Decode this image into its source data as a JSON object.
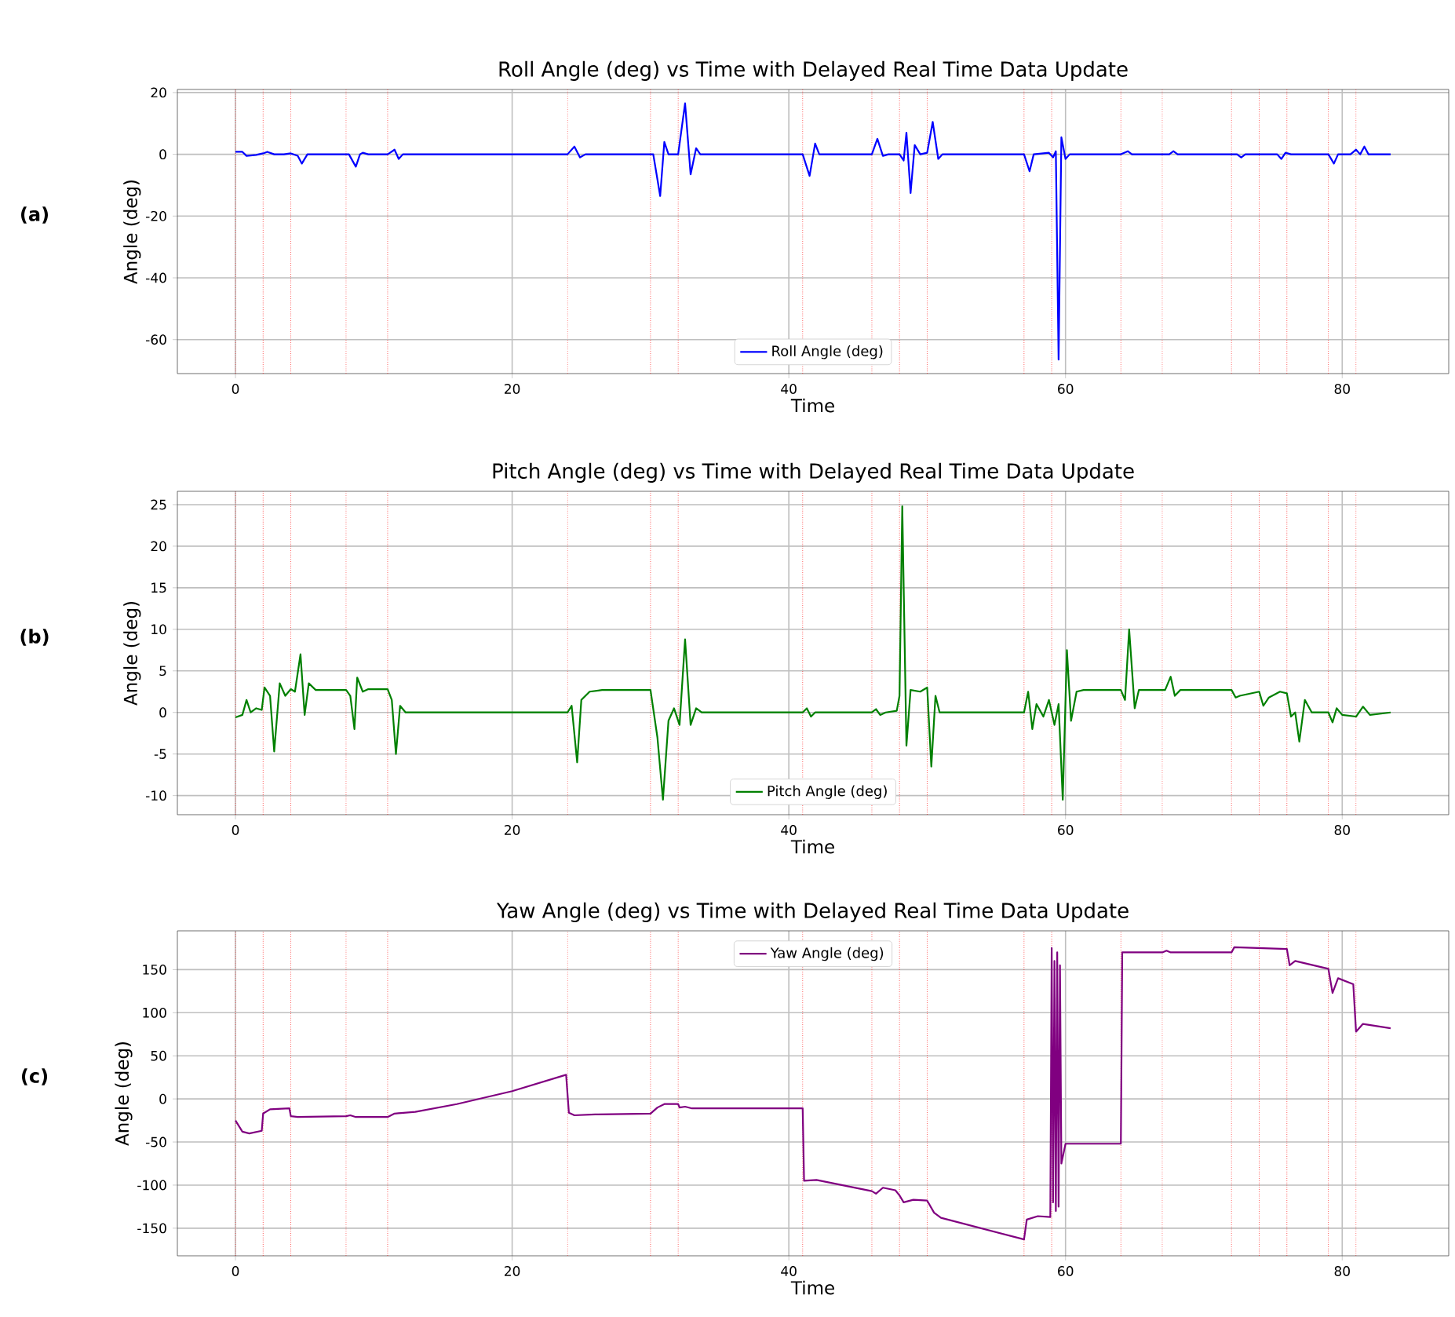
{
  "chart_data": [
    {
      "type": "line",
      "title": "Roll Angle (deg) vs Time with Delayed Real Time Data Update",
      "xlabel": "Time",
      "ylabel": "Angle (deg)",
      "annotations": [
        "(a)"
      ],
      "grid": true,
      "legend": "bottom",
      "xlim": [
        -4.2,
        87.7
      ],
      "ylim": [
        -71,
        21
      ],
      "xticks": [
        0,
        20,
        40,
        60,
        80
      ],
      "yticks": [
        -60,
        -40,
        -20,
        0,
        20
      ],
      "x": [
        0,
        0.5,
        0.8,
        1.5,
        2.0,
        2.3,
        2.8,
        3.5,
        4.0,
        4.5,
        4.8,
        5.2,
        6,
        8.2,
        8.7,
        9.0,
        9.2,
        9.6,
        11,
        11.5,
        11.8,
        12.1,
        24,
        24.5,
        24.9,
        25.3,
        30.2,
        30.7,
        31.0,
        31.3,
        32.0,
        32.5,
        32.9,
        33.3,
        33.6,
        41.0,
        41.5,
        41.9,
        42.2,
        46,
        46.4,
        46.8,
        47.2,
        48,
        48.3,
        48.5,
        48.8,
        49.1,
        49.5,
        50,
        50.4,
        50.8,
        51.1,
        57,
        57.4,
        57.7,
        58.8,
        59.1,
        59.3,
        59.5,
        59.7,
        60.0,
        60.3,
        64,
        64.5,
        64.8,
        67.5,
        67.8,
        68.1,
        72.4,
        72.7,
        73.0,
        75.3,
        75.6,
        75.9,
        76.3,
        79,
        79.4,
        79.7,
        80.6,
        81.0,
        81.3,
        81.6,
        81.9,
        83.5
      ],
      "series": [
        {
          "name": "Roll Angle (deg)",
          "color": "#0000ff",
          "values": [
            0.8,
            0.8,
            -0.5,
            -0.2,
            0.3,
            0.8,
            0,
            0,
            0.3,
            -0.5,
            -3,
            0,
            0,
            0,
            -4,
            0,
            0.5,
            0,
            0,
            1.5,
            -1.5,
            0,
            0,
            2.5,
            -1.0,
            0,
            0,
            -13.5,
            4,
            0,
            0,
            16.5,
            -6.5,
            2,
            0,
            0,
            -7,
            3.5,
            0,
            0,
            5,
            -0.5,
            0,
            0,
            -2,
            7,
            -12.5,
            3,
            0,
            0.5,
            10.5,
            -1.5,
            0,
            0,
            -5.5,
            0,
            0.5,
            -1,
            1,
            -66.5,
            5.5,
            -1.5,
            0,
            0,
            1,
            0,
            0,
            1,
            0,
            0,
            -1,
            0,
            0,
            -1.5,
            0.5,
            0,
            0,
            -3,
            0,
            0,
            1.5,
            0,
            2.5,
            0,
            0
          ]
        }
      ],
      "ref_lines": [
        {
          "axis": "x",
          "value": 0,
          "color": "#ff0000",
          "line_style": "dotted"
        },
        {
          "axis": "x",
          "value": 2,
          "color": "#ff0000",
          "line_style": "dotted"
        },
        {
          "axis": "x",
          "value": 4,
          "color": "#ff0000",
          "line_style": "dotted"
        },
        {
          "axis": "x",
          "value": 8,
          "color": "#ff0000",
          "line_style": "dotted"
        },
        {
          "axis": "x",
          "value": 11,
          "color": "#ff0000",
          "line_style": "dotted"
        },
        {
          "axis": "x",
          "value": 24,
          "color": "#ff0000",
          "line_style": "dotted"
        },
        {
          "axis": "x",
          "value": 30,
          "color": "#ff0000",
          "line_style": "dotted"
        },
        {
          "axis": "x",
          "value": 32,
          "color": "#ff0000",
          "line_style": "dotted"
        },
        {
          "axis": "x",
          "value": 41,
          "color": "#ff0000",
          "line_style": "dotted"
        },
        {
          "axis": "x",
          "value": 46,
          "color": "#ff0000",
          "line_style": "dotted"
        },
        {
          "axis": "x",
          "value": 48,
          "color": "#ff0000",
          "line_style": "dotted"
        },
        {
          "axis": "x",
          "value": 50,
          "color": "#ff0000",
          "line_style": "dotted"
        },
        {
          "axis": "x",
          "value": 57,
          "color": "#ff0000",
          "line_style": "dotted"
        },
        {
          "axis": "x",
          "value": 59,
          "color": "#ff0000",
          "line_style": "dotted"
        },
        {
          "axis": "x",
          "value": 64,
          "color": "#ff0000",
          "line_style": "dotted"
        },
        {
          "axis": "x",
          "value": 67,
          "color": "#ff0000",
          "line_style": "dotted"
        },
        {
          "axis": "x",
          "value": 72,
          "color": "#ff0000",
          "line_style": "dotted"
        },
        {
          "axis": "x",
          "value": 74,
          "color": "#ff0000",
          "line_style": "dotted"
        },
        {
          "axis": "x",
          "value": 76,
          "color": "#ff0000",
          "line_style": "dotted"
        },
        {
          "axis": "x",
          "value": 79,
          "color": "#ff0000",
          "line_style": "dotted"
        },
        {
          "axis": "x",
          "value": 81,
          "color": "#ff0000",
          "line_style": "dotted"
        }
      ]
    },
    {
      "type": "line",
      "title": "Pitch Angle (deg) vs Time with Delayed Real Time Data Update",
      "xlabel": "Time",
      "ylabel": "Angle (deg)",
      "annotations": [
        "(b)"
      ],
      "grid": true,
      "legend": "bottom",
      "xlim": [
        -4.2,
        87.7
      ],
      "ylim": [
        -12.3,
        26.6
      ],
      "xticks": [
        0,
        20,
        40,
        60,
        80
      ],
      "yticks": [
        -10,
        -5,
        0,
        5,
        10,
        15,
        20,
        25
      ],
      "x": [
        0,
        0.5,
        0.8,
        1.1,
        1.5,
        1.9,
        2.1,
        2.5,
        2.8,
        3.2,
        3.6,
        4.0,
        4.3,
        4.7,
        5.0,
        5.3,
        5.8,
        8.0,
        8.3,
        8.6,
        8.8,
        9.2,
        9.6,
        11.0,
        11.3,
        11.6,
        11.9,
        12.3,
        24,
        24.3,
        24.7,
        25.0,
        25.6,
        26.5,
        30.0,
        30.5,
        30.9,
        31.3,
        31.7,
        32.1,
        32.5,
        32.9,
        33.3,
        33.7,
        41,
        41.3,
        41.6,
        41.9,
        46,
        46.3,
        46.6,
        47,
        47.8,
        48.0,
        48.2,
        48.5,
        48.8,
        49.5,
        50.0,
        50.3,
        50.6,
        50.9,
        57,
        57.3,
        57.6,
        57.9,
        58.4,
        58.8,
        59.2,
        59.5,
        59.8,
        60.1,
        60.4,
        60.8,
        61.3,
        64,
        64.3,
        64.6,
        65.0,
        65.3,
        67.2,
        67.6,
        67.9,
        68.3,
        72.0,
        72.3,
        72.6,
        74,
        74.3,
        74.7,
        75.5,
        76,
        76.3,
        76.6,
        76.9,
        77.3,
        77.8,
        79,
        79.3,
        79.6,
        80,
        81,
        81.5,
        82,
        83.5
      ],
      "series": [
        {
          "name": "Pitch Angle (deg)",
          "color": "#008000",
          "values": [
            -0.6,
            -0.3,
            1.5,
            0,
            0.5,
            0.3,
            3,
            2,
            -4.7,
            3.5,
            2,
            2.8,
            2.5,
            7,
            -0.3,
            3.5,
            2.7,
            2.7,
            2,
            -2,
            4.2,
            2.5,
            2.8,
            2.8,
            1.5,
            -5,
            0.8,
            0,
            0,
            0.8,
            -6,
            1.5,
            2.5,
            2.7,
            2.7,
            -3,
            -10.5,
            -1,
            0.5,
            -1.5,
            8.8,
            -1.5,
            0.5,
            0,
            0,
            0.5,
            -0.5,
            0,
            0,
            0.4,
            -0.3,
            0,
            0.2,
            2,
            24.8,
            -4,
            2.7,
            2.5,
            3,
            -6.5,
            2,
            0,
            0,
            2.5,
            -2,
            1,
            -0.5,
            1.5,
            -1.5,
            1,
            -10.5,
            7.5,
            -1,
            2.5,
            2.7,
            2.7,
            1.5,
            10,
            0.5,
            2.7,
            2.7,
            4.3,
            2,
            2.7,
            2.7,
            1.8,
            2,
            2.5,
            0.8,
            1.8,
            2.5,
            2.3,
            -0.5,
            0,
            -3.5,
            1.5,
            0,
            0,
            -1.2,
            0.5,
            -0.3,
            -0.5,
            0.7,
            -0.3,
            0
          ]
        }
      ],
      "ref_lines": [
        {
          "axis": "x",
          "value": 0,
          "color": "#ff0000",
          "line_style": "dotted"
        },
        {
          "axis": "x",
          "value": 2,
          "color": "#ff0000",
          "line_style": "dotted"
        },
        {
          "axis": "x",
          "value": 4,
          "color": "#ff0000",
          "line_style": "dotted"
        },
        {
          "axis": "x",
          "value": 8,
          "color": "#ff0000",
          "line_style": "dotted"
        },
        {
          "axis": "x",
          "value": 11,
          "color": "#ff0000",
          "line_style": "dotted"
        },
        {
          "axis": "x",
          "value": 24,
          "color": "#ff0000",
          "line_style": "dotted"
        },
        {
          "axis": "x",
          "value": 30,
          "color": "#ff0000",
          "line_style": "dotted"
        },
        {
          "axis": "x",
          "value": 32,
          "color": "#ff0000",
          "line_style": "dotted"
        },
        {
          "axis": "x",
          "value": 41,
          "color": "#ff0000",
          "line_style": "dotted"
        },
        {
          "axis": "x",
          "value": 46,
          "color": "#ff0000",
          "line_style": "dotted"
        },
        {
          "axis": "x",
          "value": 48,
          "color": "#ff0000",
          "line_style": "dotted"
        },
        {
          "axis": "x",
          "value": 50,
          "color": "#ff0000",
          "line_style": "dotted"
        },
        {
          "axis": "x",
          "value": 57,
          "color": "#ff0000",
          "line_style": "dotted"
        },
        {
          "axis": "x",
          "value": 59,
          "color": "#ff0000",
          "line_style": "dotted"
        },
        {
          "axis": "x",
          "value": 64,
          "color": "#ff0000",
          "line_style": "dotted"
        },
        {
          "axis": "x",
          "value": 67,
          "color": "#ff0000",
          "line_style": "dotted"
        },
        {
          "axis": "x",
          "value": 72,
          "color": "#ff0000",
          "line_style": "dotted"
        },
        {
          "axis": "x",
          "value": 74,
          "color": "#ff0000",
          "line_style": "dotted"
        },
        {
          "axis": "x",
          "value": 76,
          "color": "#ff0000",
          "line_style": "dotted"
        },
        {
          "axis": "x",
          "value": 79,
          "color": "#ff0000",
          "line_style": "dotted"
        },
        {
          "axis": "x",
          "value": 81,
          "color": "#ff0000",
          "line_style": "dotted"
        }
      ]
    },
    {
      "type": "line",
      "title": "Yaw Angle (deg) vs Time with Delayed Real Time Data Update",
      "xlabel": "Time",
      "ylabel": "Angle (deg)",
      "annotations": [
        "(c)"
      ],
      "grid": true,
      "legend": "top",
      "xlim": [
        -4.2,
        87.7
      ],
      "ylim": [
        -182,
        195
      ],
      "xticks": [
        0,
        20,
        40,
        60,
        80
      ],
      "yticks": [
        -150,
        -100,
        -50,
        0,
        50,
        100,
        150
      ],
      "x": [
        0,
        0.5,
        1.0,
        1.9,
        2.0,
        2.5,
        3.9,
        4.0,
        4.5,
        8,
        8.3,
        8.7,
        11,
        11.5,
        13,
        16,
        20,
        23.9,
        24.1,
        24.5,
        26,
        30,
        30.5,
        31,
        32,
        32.1,
        32.5,
        33,
        41,
        41.1,
        42,
        46,
        46.3,
        46.8,
        47.7,
        48,
        48.3,
        49,
        50,
        50.5,
        51,
        57,
        57.2,
        58,
        58.9,
        59,
        59.1,
        59.2,
        59.3,
        59.4,
        59.5,
        59.6,
        59.7,
        60,
        64,
        64.1,
        67,
        67.3,
        67.6,
        72,
        72.2,
        76,
        76.2,
        76.6,
        79,
        79.3,
        79.7,
        80.8,
        81,
        81.5,
        83.5
      ],
      "series": [
        {
          "name": "Yaw Angle (deg)",
          "color": "#800080",
          "values": [
            -25,
            -38,
            -40,
            -37,
            -17,
            -12,
            -11,
            -20,
            -21,
            -20,
            -19,
            -21,
            -21,
            -17,
            -15,
            -6,
            9,
            28,
            -16,
            -19,
            -18,
            -17,
            -10,
            -6,
            -6,
            -10,
            -9,
            -11,
            -11,
            -95,
            -94,
            -107,
            -110,
            -103,
            -106,
            -112,
            -120,
            -117,
            -118,
            -132,
            -138,
            -163,
            -140,
            -136,
            -137,
            175,
            -120,
            160,
            -130,
            170,
            -125,
            155,
            -75,
            -52,
            -52,
            170,
            170,
            172,
            170,
            170,
            176,
            174,
            155,
            160,
            151,
            123,
            140,
            133,
            78,
            87,
            82
          ]
        }
      ],
      "ref_lines": [
        {
          "axis": "x",
          "value": 0,
          "color": "#ff0000",
          "line_style": "dotted"
        },
        {
          "axis": "x",
          "value": 2,
          "color": "#ff0000",
          "line_style": "dotted"
        },
        {
          "axis": "x",
          "value": 4,
          "color": "#ff0000",
          "line_style": "dotted"
        },
        {
          "axis": "x",
          "value": 8,
          "color": "#ff0000",
          "line_style": "dotted"
        },
        {
          "axis": "x",
          "value": 11,
          "color": "#ff0000",
          "line_style": "dotted"
        },
        {
          "axis": "x",
          "value": 24,
          "color": "#ff0000",
          "line_style": "dotted"
        },
        {
          "axis": "x",
          "value": 30,
          "color": "#ff0000",
          "line_style": "dotted"
        },
        {
          "axis": "x",
          "value": 32,
          "color": "#ff0000",
          "line_style": "dotted"
        },
        {
          "axis": "x",
          "value": 41,
          "color": "#ff0000",
          "line_style": "dotted"
        },
        {
          "axis": "x",
          "value": 46,
          "color": "#ff0000",
          "line_style": "dotted"
        },
        {
          "axis": "x",
          "value": 48,
          "color": "#ff0000",
          "line_style": "dotted"
        },
        {
          "axis": "x",
          "value": 50,
          "color": "#ff0000",
          "line_style": "dotted"
        },
        {
          "axis": "x",
          "value": 57,
          "color": "#ff0000",
          "line_style": "dotted"
        },
        {
          "axis": "x",
          "value": 59,
          "color": "#ff0000",
          "line_style": "dotted"
        },
        {
          "axis": "x",
          "value": 64,
          "color": "#ff0000",
          "line_style": "dotted"
        },
        {
          "axis": "x",
          "value": 67,
          "color": "#ff0000",
          "line_style": "dotted"
        },
        {
          "axis": "x",
          "value": 72,
          "color": "#ff0000",
          "line_style": "dotted"
        },
        {
          "axis": "x",
          "value": 74,
          "color": "#ff0000",
          "line_style": "dotted"
        },
        {
          "axis": "x",
          "value": 76,
          "color": "#ff0000",
          "line_style": "dotted"
        },
        {
          "axis": "x",
          "value": 79,
          "color": "#ff0000",
          "line_style": "dotted"
        },
        {
          "axis": "x",
          "value": 81,
          "color": "#ff0000",
          "line_style": "dotted"
        }
      ]
    }
  ]
}
